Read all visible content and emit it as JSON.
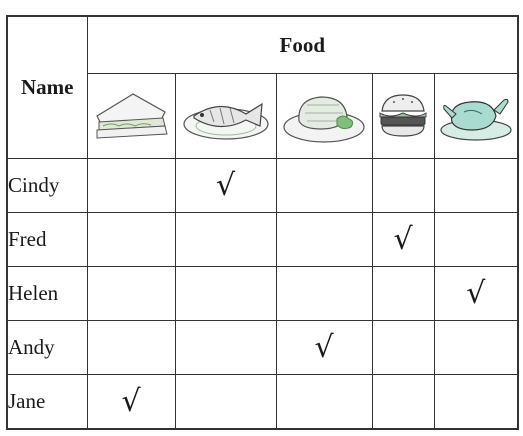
{
  "headers": {
    "name": "Name",
    "food": "Food"
  },
  "foods": [
    {
      "icon": "sandwich-icon"
    },
    {
      "icon": "fish-icon"
    },
    {
      "icon": "meat-icon"
    },
    {
      "icon": "burger-icon"
    },
    {
      "icon": "chicken-icon"
    }
  ],
  "check_symbol": "√",
  "rows": [
    {
      "name": "Cindy",
      "checks": [
        "",
        "√",
        "",
        "",
        ""
      ]
    },
    {
      "name": "Fred",
      "checks": [
        "",
        "",
        "",
        "√",
        ""
      ]
    },
    {
      "name": "Helen",
      "checks": [
        "",
        "",
        "",
        "",
        "√"
      ]
    },
    {
      "name": "Andy",
      "checks": [
        "",
        "",
        "√",
        "",
        ""
      ]
    },
    {
      "name": "Jane",
      "checks": [
        "√",
        "",
        "",
        "",
        ""
      ]
    }
  ]
}
